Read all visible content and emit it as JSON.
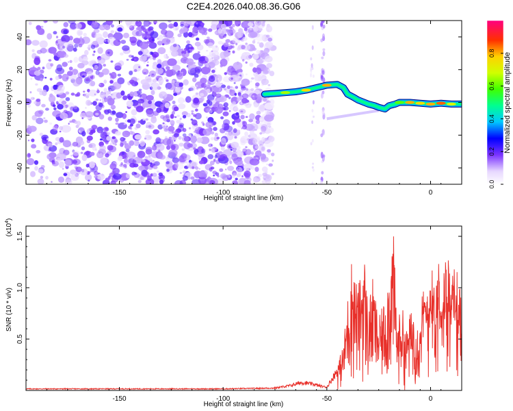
{
  "title": "C2E4.2026.040.08.36.G06",
  "chart_data": [
    {
      "type": "heatmap",
      "panel": "spectrogram",
      "xlabel": "Height of straight line (km)",
      "ylabel": "Frequency (Hz)",
      "xlim": [
        -195,
        15
      ],
      "ylim": [
        -50,
        50
      ],
      "xticks": [
        -150,
        -100,
        -50,
        0
      ],
      "yticks": [
        -40,
        -20,
        0,
        20,
        40
      ],
      "xtick_labels": [
        "-150",
        "-100",
        "-50",
        "0"
      ],
      "ytick_labels": [
        "-40",
        "-20",
        "0",
        "20",
        "40"
      ],
      "noise_region_x": [
        -195,
        -78
      ],
      "signal_track": {
        "x": [
          -80,
          -75,
          -70,
          -65,
          -60,
          -55,
          -50,
          -45,
          -42,
          -40,
          -37,
          -35,
          -32,
          -30,
          -27,
          -25,
          -22,
          -20,
          -17,
          -15,
          -10,
          -5,
          0,
          5,
          10,
          15
        ],
        "y": [
          5,
          5.5,
          6,
          6.5,
          7.5,
          9,
          10.5,
          11,
          9,
          5,
          3,
          1.5,
          0,
          -1,
          -2,
          -3,
          -4,
          -2,
          -1,
          0,
          0,
          -0.5,
          -1,
          -0.5,
          -1,
          -1
        ],
        "amplitude": [
          0.3,
          0.35,
          0.65,
          0.5,
          0.75,
          0.5,
          0.8,
          0.55,
          0.4,
          0.3,
          0.3,
          0.25,
          0.3,
          0.35,
          0.3,
          0.35,
          0.3,
          0.35,
          0.45,
          0.6,
          0.8,
          0.75,
          0.8,
          0.85,
          0.7,
          0.4
        ]
      },
      "secondary_track": {
        "x": [
          -50,
          -40,
          -35,
          -30,
          -25
        ],
        "y": [
          -10,
          -8,
          -7,
          -6,
          -5
        ]
      },
      "colorbar": {
        "label": "Normalized spectral amplitude",
        "range": [
          0,
          1
        ],
        "ticks": [
          0.0,
          0.2,
          0.4,
          0.6,
          0.8
        ],
        "tick_labels": [
          "0.0",
          "0.2",
          "0.4",
          "0.6",
          "0.8"
        ]
      }
    },
    {
      "type": "line",
      "panel": "snr",
      "xlabel": "Height of straight line (km)",
      "ylabel": "SNR (10 * v/v)",
      "scale_label": "(x10",
      "scale_exp": "4",
      "scale_close": ")",
      "xlim": [
        -195,
        15
      ],
      "ylim": [
        0,
        1.6
      ],
      "xticks": [
        -150,
        -100,
        -50,
        0
      ],
      "yticks": [
        0.5,
        1.0,
        1.5
      ],
      "xtick_labels": [
        "-150",
        "-100",
        "-50",
        "0"
      ],
      "ytick_labels": [
        "0.5",
        "1.0",
        "1.5"
      ],
      "series": [
        {
          "name": "SNR",
          "color": "#e8302a",
          "envelope_x": [
            -195,
            -150,
            -100,
            -75,
            -68,
            -62,
            -57,
            -52,
            -50,
            -48,
            -45,
            -42,
            -40,
            -38,
            -35,
            -32,
            -30,
            -28,
            -25,
            -22,
            -20,
            -18,
            -16,
            -14,
            -12,
            -10,
            -8,
            -6,
            -4,
            -2,
            0,
            2,
            4,
            6,
            8,
            10,
            12,
            15
          ],
          "envelope_y": [
            0.02,
            0.02,
            0.02,
            0.03,
            0.06,
            0.1,
            0.08,
            0.05,
            0.04,
            0.12,
            0.25,
            0.45,
            0.9,
            1.3,
            1.0,
            1.35,
            0.8,
            1.1,
            0.7,
            0.9,
            1.2,
            1.58,
            0.6,
            0.9,
            0.55,
            0.75,
            0.8,
            0.65,
            0.95,
            1.1,
            1.3,
            1.0,
            1.35,
            1.1,
            1.44,
            1.05,
            1.28,
            0.9
          ]
        }
      ]
    }
  ]
}
